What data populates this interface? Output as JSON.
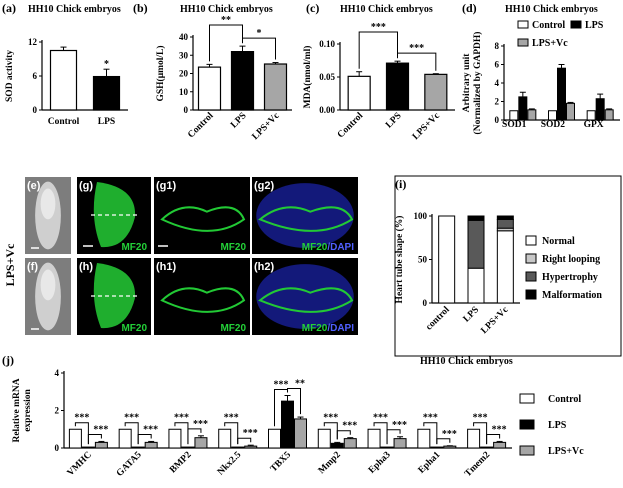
{
  "figure": {
    "side_label": "LPS+Vc",
    "image_panels": [
      {
        "id": "e",
        "label": "(e)"
      },
      {
        "id": "g",
        "label": "(g)",
        "stain": "MF20"
      },
      {
        "id": "g1",
        "label": "(g1)",
        "stain": "MF20"
      },
      {
        "id": "g2",
        "label": "(g2)",
        "stain": "MF20",
        "stain2": "/DAPI"
      },
      {
        "id": "f",
        "label": "(f)"
      },
      {
        "id": "h",
        "label": "(h)",
        "stain": "MF20"
      },
      {
        "id": "h1",
        "label": "(h1)",
        "stain": "MF20"
      },
      {
        "id": "h2",
        "label": "(h2)",
        "stain": "MF20",
        "stain2": "/DAPI"
      }
    ]
  },
  "colors": {
    "white": "#ffffff",
    "black": "#000000",
    "gray": "#a6a6a6",
    "darkgray": "#595959",
    "lightgray": "#c8c8c8",
    "green": "#23d138",
    "blue": "#1a2cff"
  },
  "chart_data": [
    {
      "id": "a",
      "panel_label": "(a)",
      "type": "bar",
      "title": "HH10 Chick embryos",
      "ylabel": "SOD activity",
      "ylim": [
        0,
        12
      ],
      "yticks": [
        "0",
        "6",
        "12"
      ],
      "categories": [
        "Control",
        "LPS"
      ],
      "values": [
        10.5,
        5.9
      ],
      "errors": [
        0.6,
        1.3
      ],
      "fills": [
        "white",
        "black"
      ],
      "annotations": [
        {
          "over": 1,
          "text": "*"
        }
      ]
    },
    {
      "id": "b",
      "panel_label": "(b)",
      "type": "bar",
      "title": "HH10 Chick embryos",
      "ylabel": "GSH(μmol/L)",
      "ylim": [
        0,
        40
      ],
      "yticks": [
        "0",
        "10",
        "20",
        "30",
        "40"
      ],
      "categories": [
        "Control",
        "LPS",
        "LPS+Vc"
      ],
      "values": [
        23.5,
        32,
        25.2
      ],
      "errors": [
        1.5,
        3.0,
        0.8
      ],
      "fills": [
        "white",
        "black",
        "gray"
      ],
      "brackets": [
        {
          "from": 0,
          "to": 1,
          "text": "**"
        },
        {
          "from": 1,
          "to": 2,
          "text": "*"
        }
      ]
    },
    {
      "id": "c",
      "panel_label": "(c)",
      "type": "bar",
      "title": "HH10 Chick embryos",
      "ylabel": "MDA(nmol/ml)",
      "ylim": [
        0,
        0.1
      ],
      "yticks": [
        "0.00",
        "0.05",
        "0.10"
      ],
      "categories": [
        "Control",
        "LPS",
        "LPS+Vc"
      ],
      "values": [
        0.051,
        0.071,
        0.054
      ],
      "errors": [
        0.007,
        0.003,
        0.001
      ],
      "fills": [
        "white",
        "black",
        "gray"
      ],
      "brackets": [
        {
          "from": 0,
          "to": 1,
          "text": "***"
        },
        {
          "from": 1,
          "to": 2,
          "text": "***"
        }
      ]
    },
    {
      "id": "d",
      "panel_label": "(d)",
      "type": "bar",
      "title": "HH10 Chick embryos",
      "ylabel": "Arbitrary unit",
      "ylabel2": "(Normalized by GAPDH)",
      "ylim": [
        0,
        8
      ],
      "yticks": [
        "0",
        "2",
        "4",
        "6",
        "8"
      ],
      "categories": [
        "SOD1",
        "SOD2",
        "GPX"
      ],
      "series": [
        {
          "name": "Control",
          "values": [
            1.0,
            1.0,
            1.0
          ],
          "errors": [
            0,
            0,
            0
          ],
          "fill": "white"
        },
        {
          "name": "LPS",
          "values": [
            2.5,
            5.6,
            2.3
          ],
          "errors": [
            0.5,
            0.4,
            0.5
          ],
          "fill": "black"
        },
        {
          "name": "LPS+Vc",
          "values": [
            1.1,
            1.8,
            1.1
          ],
          "errors": [
            0.1,
            0.1,
            0.1
          ],
          "fill": "gray"
        }
      ]
    },
    {
      "id": "i",
      "panel_label": "(i)",
      "type": "bar",
      "stacked": true,
      "ylabel": "Heart tube shape (%)",
      "ylim": [
        0,
        100
      ],
      "yticks": [
        "0",
        "50",
        "100"
      ],
      "categories": [
        "control",
        "LPS",
        "LPS+Vc"
      ],
      "series": [
        {
          "name": "Normal",
          "values": [
            100,
            40,
            83
          ],
          "fill": "white"
        },
        {
          "name": "Right looping",
          "values": [
            0,
            0,
            3
          ],
          "fill": "lightgray"
        },
        {
          "name": "Hypertrophy",
          "values": [
            0,
            55,
            10
          ],
          "fill": "darkgray"
        },
        {
          "name": "Malformation",
          "values": [
            0,
            5,
            4
          ],
          "fill": "black"
        }
      ]
    },
    {
      "id": "j",
      "panel_label": "(j)",
      "type": "bar",
      "title": "HH10 Chick embryos",
      "ylabel": "Relative mRNA",
      "ylabel2": "expression",
      "ylim": [
        0,
        4
      ],
      "yticks": [
        "0",
        "2",
        "4"
      ],
      "categories": [
        "VMHC",
        "GATA5",
        "BMP2",
        "Nkx2.5",
        "TBX5",
        "Mmp2",
        "Epha3",
        "Epha1",
        "Tmem2"
      ],
      "series": [
        {
          "name": "Control",
          "values": [
            1,
            1,
            1,
            1,
            1,
            1,
            1,
            1,
            1
          ],
          "errors": [
            0,
            0,
            0,
            0,
            0,
            0,
            0,
            0,
            0
          ],
          "fill": "white"
        },
        {
          "name": "LPS",
          "values": [
            0.05,
            0.05,
            0.05,
            0.05,
            2.5,
            0.25,
            0.05,
            0.05,
            0.05
          ],
          "errors": [
            0,
            0,
            0,
            0,
            0.3,
            0.05,
            0,
            0,
            0
          ],
          "fill": "black"
        },
        {
          "name": "LPS+Vc",
          "values": [
            0.3,
            0.3,
            0.55,
            0.1,
            1.55,
            0.5,
            0.5,
            0.1,
            0.3
          ],
          "errors": [
            0.05,
            0.05,
            0.1,
            0.05,
            0.1,
            0.05,
            0.1,
            0.02,
            0.05
          ],
          "fill": "gray"
        }
      ],
      "sig_left": [
        "***",
        "***",
        "***",
        "***",
        "***",
        "***",
        "***",
        "***",
        "***"
      ],
      "sig_right": [
        "***",
        "***",
        "***",
        "***",
        "**",
        "***",
        "***",
        "***",
        "***"
      ]
    }
  ]
}
